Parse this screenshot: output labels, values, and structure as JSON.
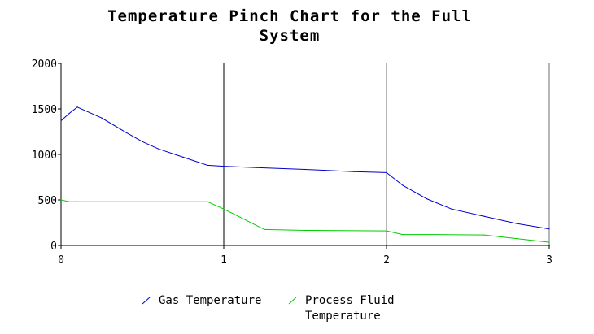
{
  "chart_data": {
    "type": "line",
    "title_lines": [
      "Temperature Pinch Chart for the Full",
      "System"
    ],
    "xlabel": "",
    "ylabel": "",
    "xlim": [
      0,
      3
    ],
    "ylim": [
      0,
      2000
    ],
    "x_ticks": [
      0,
      1,
      2,
      3
    ],
    "x_tick_labels": [
      "0",
      "1",
      "2",
      "3"
    ],
    "y_ticks": [
      0,
      500,
      1000,
      1500,
      2000
    ],
    "y_tick_labels": [
      "0",
      "500",
      "1000",
      "1500",
      "2000"
    ],
    "vertical_markers": [
      1,
      2,
      3
    ],
    "legend_position": "bottom",
    "series": [
      {
        "name": "Gas Temperature",
        "color": "#0000cc",
        "x": [
          0,
          0.05,
          0.1,
          0.25,
          0.4,
          0.5,
          0.6,
          0.75,
          0.9,
          1.0,
          1.2,
          1.5,
          1.8,
          2.0,
          2.1,
          2.25,
          2.4,
          2.6,
          2.8,
          3.0
        ],
        "y": [
          1370,
          1450,
          1520,
          1400,
          1240,
          1140,
          1060,
          970,
          880,
          870,
          855,
          835,
          810,
          800,
          660,
          510,
          400,
          320,
          240,
          180
        ]
      },
      {
        "name": "Process Fluid Temperature",
        "name_lines": [
          "Process Fluid",
          "Temperature"
        ],
        "color": "#00cc00",
        "x": [
          0,
          0.05,
          0.1,
          0.5,
          0.9,
          1.0,
          1.1,
          1.25,
          1.5,
          2.0,
          2.1,
          2.3,
          2.6,
          2.8,
          3.0
        ],
        "y": [
          500,
          480,
          480,
          480,
          480,
          400,
          310,
          175,
          165,
          160,
          120,
          120,
          115,
          75,
          35
        ]
      }
    ]
  }
}
